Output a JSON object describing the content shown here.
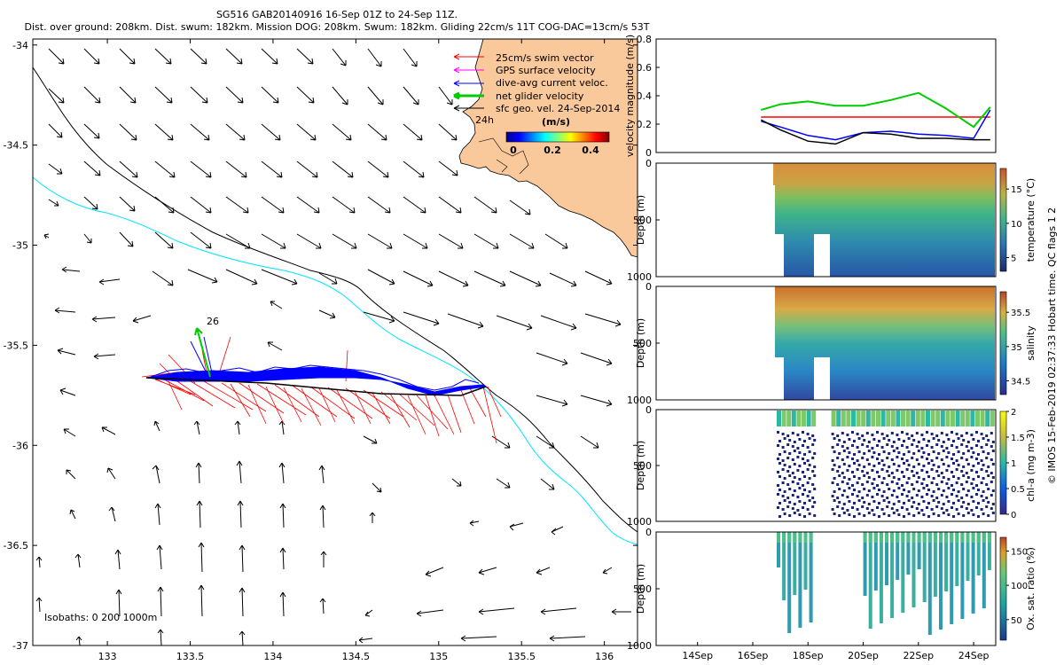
{
  "title": {
    "line1": "SG516 GAB20140916 16-Sep 01Z to 24-Sep 11Z.",
    "line2": "Dist. over ground: 208km. Dist. swum: 182km. Mission DOG: 208km. Swum: 182km. Gliding 22cm/s 11T COG-DAC=13cm/s 53T"
  },
  "side_label": "© IMOS 15-Feb-2019 02:37:33 Hobart time. QC flags 1  2",
  "colors": {
    "land": "#F9C89B",
    "shelf": "#00E5FF",
    "swim": "#FF0000",
    "dac": "#0000FF",
    "net": "#00CC00",
    "gps": "#FF00FF"
  },
  "chart_data": [
    {
      "type": "map",
      "xlim": [
        132.55,
        136.2
      ],
      "ylim": [
        -37.0,
        -33.97
      ],
      "xticks": [
        133,
        133.5,
        134,
        134.5,
        135,
        135.5,
        136
      ],
      "xticklabels": [
        "133",
        "133.5",
        "134",
        "134.5",
        "135",
        "135.5",
        "136"
      ],
      "yticks": [
        -34,
        -34.5,
        -35,
        -35.5,
        -36,
        -36.5,
        -37
      ],
      "yticklabels": [
        "-34",
        "-34.5",
        "-35",
        "-35.5",
        "-36",
        "-36.5",
        "-37"
      ],
      "legend": [
        {
          "label": "25cm/s swim vector",
          "color": "#FF0000"
        },
        {
          "label": "GPS surface velocity",
          "color": "#FF00FF"
        },
        {
          "label": "dive-avg current veloc.",
          "color": "#0000FF"
        },
        {
          "label": "net glider velocity",
          "color": "#00CC00"
        },
        {
          "label": "sfc geo. vel. 24-Sep-2014",
          "color": "#000000"
        }
      ],
      "legend_side_label": "24h",
      "colorbar": {
        "label": "(m/s)",
        "ticks": [
          "0",
          "0.2",
          "0.4"
        ],
        "range": [
          0,
          0.5
        ]
      },
      "isobath_label": "Isobaths: 0   200  1000m",
      "track_start_label": "26",
      "track": {
        "lon": [
          135.33,
          135.1,
          134.8,
          134.4,
          134.0,
          133.6,
          133.3
        ],
        "lat": [
          -35.72,
          -35.74,
          -35.72,
          -35.7,
          -35.69,
          -35.68,
          -35.66
        ]
      },
      "start_point": {
        "lon": 133.6,
        "lat": -35.66
      },
      "end_point": {
        "lon": 135.33,
        "lat": -35.72
      }
    },
    {
      "type": "line",
      "ylabel": "velocity magnitude (m/s)",
      "ylim": [
        0,
        0.8
      ],
      "yticks": [
        "0",
        "0.2",
        "0.4",
        "0.6",
        "0.8"
      ],
      "x": [
        16.3,
        17,
        18,
        19,
        20,
        21,
        22,
        23,
        24,
        24.6
      ],
      "series": [
        {
          "name": "swim speed",
          "color": "#FF0000",
          "values": [
            0.25,
            0.25,
            0.25,
            0.25,
            0.25,
            0.25,
            0.25,
            0.25,
            0.25,
            0.25
          ]
        },
        {
          "name": "net glider velocity",
          "color": "#00CC00",
          "values": [
            0.3,
            0.34,
            0.36,
            0.33,
            0.33,
            0.37,
            0.42,
            0.31,
            0.18,
            0.32
          ]
        },
        {
          "name": "dive-avg current",
          "color": "#0000FF",
          "values": [
            0.22,
            0.18,
            0.12,
            0.09,
            0.14,
            0.15,
            0.13,
            0.12,
            0.1,
            0.3
          ]
        },
        {
          "name": "sfc geo. vel.",
          "color": "#000000",
          "values": [
            0.23,
            0.16,
            0.08,
            0.06,
            0.14,
            0.13,
            0.1,
            0.1,
            0.09,
            0.09
          ]
        }
      ]
    },
    {
      "type": "scatter",
      "ylabel": "Depth (m)",
      "ylim": [
        1000,
        0
      ],
      "yticks": [
        "0",
        "500",
        "1000"
      ],
      "colorbar_label": "temperature (°C)",
      "colorbar_ticks": [
        "5",
        "10",
        "15"
      ],
      "clim": [
        3,
        18
      ]
    },
    {
      "type": "scatter",
      "ylabel": "Depth (m)",
      "ylim": [
        1000,
        0
      ],
      "yticks": [
        "0",
        "500",
        "1000"
      ],
      "colorbar_label": "salinity",
      "colorbar_ticks": [
        "34.5",
        "35",
        "35.5"
      ],
      "clim": [
        34.3,
        35.8
      ]
    },
    {
      "type": "scatter",
      "ylabel": "Depth (m)",
      "ylim": [
        1000,
        0
      ],
      "yticks": [
        "0",
        "500",
        "1000"
      ],
      "colorbar_label": "chl-a (mg m-3)",
      "colorbar_ticks": [
        "0",
        "0.5",
        "1",
        "1.5",
        "2"
      ],
      "clim": [
        0,
        2
      ]
    },
    {
      "type": "scatter",
      "ylabel": "Depth (m)",
      "ylim": [
        1000,
        0
      ],
      "yticks": [
        "0",
        "500",
        "1000"
      ],
      "colorbar_label": "Ox. sat. ratio (%)",
      "colorbar_ticks": [
        "50",
        "100",
        "150"
      ],
      "clim": [
        20,
        170
      ],
      "xticks": [
        14,
        16,
        18,
        20,
        22,
        24
      ],
      "xticklabels": [
        "14Sep",
        "16Sep",
        "18Sep",
        "20Sep",
        "22Sep",
        "24Sep"
      ],
      "xlim": [
        12.5,
        24.8
      ]
    }
  ]
}
